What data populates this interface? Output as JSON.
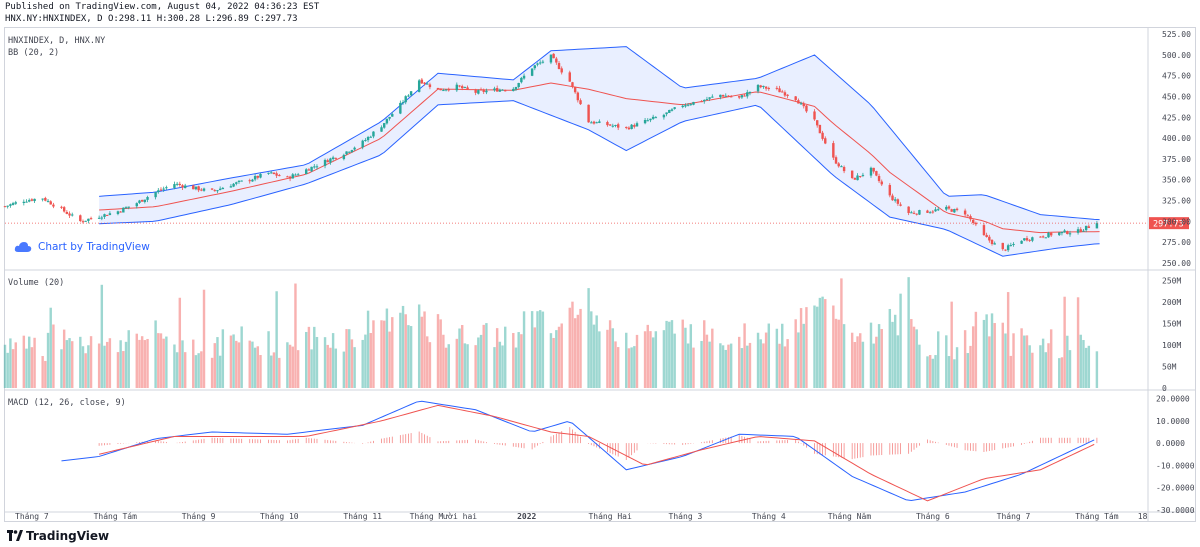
{
  "header": {
    "published": "Published on TradingView.com, August 04, 2022 04:36:23 EST",
    "ohlc": "HNX.NY:HNXINDEX, D O:298.11 H:300.28 L:296.89 C:297.73"
  },
  "legend": {
    "symbol": "HNXINDEX, D, HNX.NY",
    "bb": "BB (20, 2)",
    "volume": "Volume (20)",
    "macd": "MACD (12, 26, close, 9)"
  },
  "watermark": {
    "text": "Chart by TradingView"
  },
  "footer": {
    "brand": "TradingView"
  },
  "colors": {
    "up": "#26a69a",
    "down": "#ef5350",
    "bb_band": "#2962ff",
    "bb_basis": "#ef5350",
    "bb_fill": "#2962ff",
    "macd": "#2962ff",
    "signal": "#ef5350",
    "price_tag": "#ef5350"
  },
  "chart_data": [
    {
      "type": "candlestick",
      "panel": "price",
      "y_ticks": [
        "525.00",
        "500.00",
        "475.00",
        "450.00",
        "425.00",
        "400.00",
        "375.00",
        "350.00",
        "325.00",
        "300.00",
        "275.00",
        "250.00"
      ],
      "ylim": [
        245,
        530
      ],
      "last_price": 297.73,
      "last_price_label": "297.73",
      "close_path": [
        [
          "2021-06-21",
          318
        ],
        [
          "2021-06-28",
          325
        ],
        [
          "2021-07-05",
          328
        ],
        [
          "2021-07-12",
          314
        ],
        [
          "2021-07-19",
          300
        ],
        [
          "2021-07-26",
          306
        ],
        [
          "2021-08-02",
          312
        ],
        [
          "2021-08-09",
          322
        ],
        [
          "2021-08-16",
          335
        ],
        [
          "2021-08-23",
          345
        ],
        [
          "2021-08-30",
          340
        ],
        [
          "2021-09-06",
          336
        ],
        [
          "2021-09-13",
          344
        ],
        [
          "2021-09-20",
          350
        ],
        [
          "2021-09-27",
          358
        ],
        [
          "2021-10-04",
          352
        ],
        [
          "2021-10-11",
          362
        ],
        [
          "2021-10-18",
          372
        ],
        [
          "2021-10-25",
          382
        ],
        [
          "2021-11-01",
          395
        ],
        [
          "2021-11-08",
          415
        ],
        [
          "2021-11-15",
          440
        ],
        [
          "2021-11-22",
          470
        ],
        [
          "2021-11-29",
          458
        ],
        [
          "2021-12-06",
          462
        ],
        [
          "2021-12-13",
          455
        ],
        [
          "2021-12-20",
          458
        ],
        [
          "2021-12-27",
          460
        ],
        [
          "2022-01-03",
          485
        ],
        [
          "2022-01-10",
          498
        ],
        [
          "2022-01-17",
          468
        ],
        [
          "2022-01-24",
          420
        ],
        [
          "2022-02-07",
          412
        ],
        [
          "2022-02-14",
          420
        ],
        [
          "2022-02-21",
          428
        ],
        [
          "2022-02-28",
          440
        ],
        [
          "2022-03-07",
          445
        ],
        [
          "2022-03-14",
          452
        ],
        [
          "2022-03-21",
          448
        ],
        [
          "2022-03-28",
          462
        ],
        [
          "2022-04-04",
          458
        ],
        [
          "2022-04-11",
          448
        ],
        [
          "2022-04-18",
          420
        ],
        [
          "2022-04-25",
          375
        ],
        [
          "2022-05-02",
          350
        ],
        [
          "2022-05-09",
          362
        ],
        [
          "2022-05-16",
          330
        ],
        [
          "2022-05-23",
          310
        ],
        [
          "2022-05-30",
          312
        ],
        [
          "2022-06-06",
          315
        ],
        [
          "2022-06-13",
          310
        ],
        [
          "2022-06-20",
          282
        ],
        [
          "2022-06-27",
          265
        ],
        [
          "2022-07-04",
          278
        ],
        [
          "2022-07-11",
          282
        ],
        [
          "2022-07-18",
          286
        ],
        [
          "2022-07-25",
          288
        ],
        [
          "2022-08-01",
          297.73
        ]
      ],
      "bb_upper": [
        [
          "2021-07-26",
          330
        ],
        [
          "2021-08-16",
          335
        ],
        [
          "2021-09-13",
          352
        ],
        [
          "2021-10-11",
          368
        ],
        [
          "2021-11-08",
          420
        ],
        [
          "2021-11-29",
          478
        ],
        [
          "2021-12-27",
          470
        ],
        [
          "2022-01-10",
          505
        ],
        [
          "2022-02-07",
          510
        ],
        [
          "2022-02-28",
          460
        ],
        [
          "2022-03-28",
          472
        ],
        [
          "2022-04-18",
          500
        ],
        [
          "2022-05-09",
          440
        ],
        [
          "2022-06-06",
          330
        ],
        [
          "2022-06-20",
          332
        ],
        [
          "2022-07-11",
          308
        ],
        [
          "2022-08-01",
          302
        ]
      ],
      "bb_lower": [
        [
          "2021-07-19",
          296
        ],
        [
          "2021-08-16",
          300
        ],
        [
          "2021-09-13",
          320
        ],
        [
          "2021-10-11",
          345
        ],
        [
          "2021-11-08",
          380
        ],
        [
          "2021-11-29",
          440
        ],
        [
          "2021-12-27",
          445
        ],
        [
          "2022-01-24",
          410
        ],
        [
          "2022-02-07",
          385
        ],
        [
          "2022-02-28",
          420
        ],
        [
          "2022-03-28",
          440
        ],
        [
          "2022-04-25",
          355
        ],
        [
          "2022-05-16",
          305
        ],
        [
          "2022-06-06",
          290
        ],
        [
          "2022-06-27",
          258
        ],
        [
          "2022-07-18",
          268
        ],
        [
          "2022-08-01",
          273
        ]
      ]
    },
    {
      "type": "bar",
      "panel": "volume",
      "y_ticks": [
        "250M",
        "200M",
        "150M",
        "100M",
        "50M",
        "0"
      ],
      "ylim": [
        0,
        270
      ],
      "units": "M"
    },
    {
      "type": "line",
      "panel": "macd",
      "y_ticks": [
        "20.0000",
        "10.0000",
        "0.0000",
        "-10.0000",
        "-20.0000",
        "-30.0000"
      ],
      "ylim": [
        -31,
        23
      ],
      "macd_path": [
        [
          "2021-07-12",
          -8
        ],
        [
          "2021-07-26",
          -6
        ],
        [
          "2021-08-16",
          2
        ],
        [
          "2021-09-06",
          5
        ],
        [
          "2021-10-04",
          4
        ],
        [
          "2021-11-01",
          8
        ],
        [
          "2021-11-22",
          19
        ],
        [
          "2021-12-13",
          15
        ],
        [
          "2022-01-03",
          5
        ],
        [
          "2022-01-17",
          10
        ],
        [
          "2022-02-07",
          -12
        ],
        [
          "2022-02-28",
          -6
        ],
        [
          "2022-03-21",
          4
        ],
        [
          "2022-04-11",
          3
        ],
        [
          "2022-05-02",
          -15
        ],
        [
          "2022-05-23",
          -26
        ],
        [
          "2022-06-13",
          -22
        ],
        [
          "2022-07-04",
          -14
        ],
        [
          "2022-08-01",
          2
        ]
      ],
      "signal_path": [
        [
          "2021-07-26",
          -5
        ],
        [
          "2021-08-23",
          3
        ],
        [
          "2021-10-11",
          3
        ],
        [
          "2021-11-08",
          10
        ],
        [
          "2021-11-29",
          17
        ],
        [
          "2021-12-20",
          12
        ],
        [
          "2022-01-10",
          5
        ],
        [
          "2022-01-24",
          3
        ],
        [
          "2022-02-14",
          -10
        ],
        [
          "2022-03-07",
          -3
        ],
        [
          "2022-03-28",
          3
        ],
        [
          "2022-04-18",
          1
        ],
        [
          "2022-05-09",
          -14
        ],
        [
          "2022-05-30",
          -26
        ],
        [
          "2022-06-20",
          -16
        ],
        [
          "2022-07-11",
          -12
        ],
        [
          "2022-08-01",
          0
        ]
      ]
    }
  ],
  "x_axis": {
    "labels": [
      {
        "date": "2021-07-01",
        "text": "Tháng 7"
      },
      {
        "date": "2021-08-01",
        "text": "Tháng Tám"
      },
      {
        "date": "2021-09-01",
        "text": "Tháng 9"
      },
      {
        "date": "2021-10-01",
        "text": "Tháng 10"
      },
      {
        "date": "2021-11-01",
        "text": "Tháng 11"
      },
      {
        "date": "2021-12-01",
        "text": "Tháng Mười hai"
      },
      {
        "date": "2022-01-01",
        "text": "2022"
      },
      {
        "date": "2022-02-01",
        "text": "Tháng Hai"
      },
      {
        "date": "2022-03-01",
        "text": "Tháng 3"
      },
      {
        "date": "2022-04-01",
        "text": "Tháng 4"
      },
      {
        "date": "2022-05-01",
        "text": "Tháng Năm"
      },
      {
        "date": "2022-06-01",
        "text": "Tháng 6"
      },
      {
        "date": "2022-07-01",
        "text": "Tháng 7"
      },
      {
        "date": "2022-08-01",
        "text": "Tháng Tám"
      },
      {
        "date": "2022-08-18",
        "text": "18"
      }
    ]
  }
}
